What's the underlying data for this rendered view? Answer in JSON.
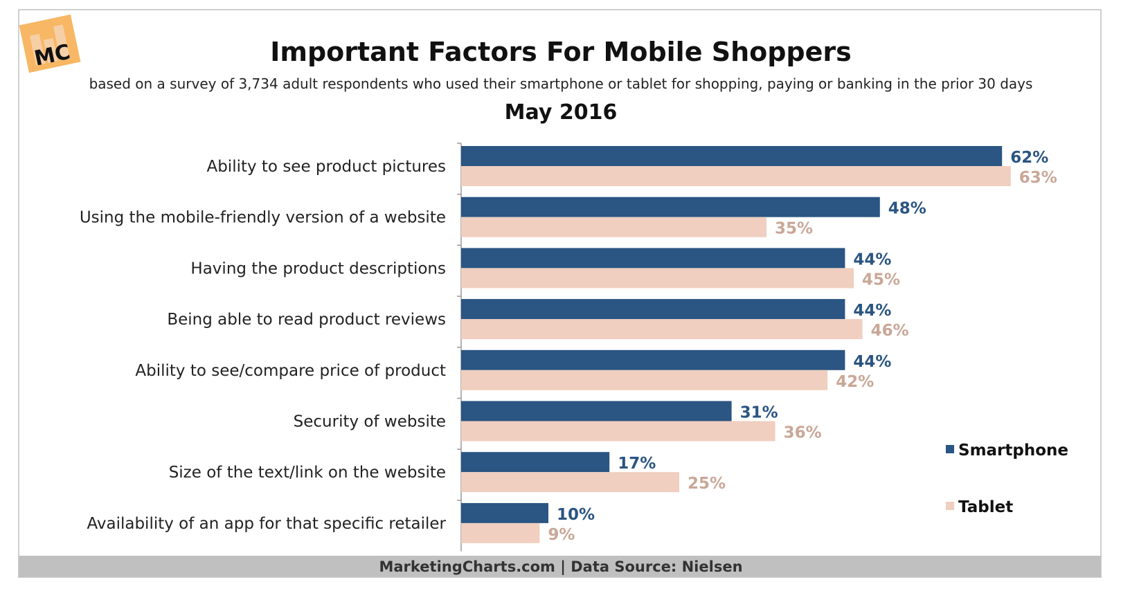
{
  "logo": {
    "text": "MC"
  },
  "footer": "MarketingCharts.com | Data Source: Nielsen",
  "colors": {
    "smartphone": "#2b5582",
    "tablet": "#f0cfc0",
    "tablet_label": "#c9a797",
    "footer_bg": "#c0c0c0"
  },
  "chart_data": {
    "type": "bar",
    "orientation": "horizontal",
    "title": "Important Factors For Mobile Shoppers",
    "subtitle": "based on a survey of 3,734 adult respondents who used their smartphone or tablet for shopping, paying or banking in the prior 30 days",
    "date": "May 2016",
    "categories": [
      "Ability to see product pictures",
      "Using the mobile-friendly version of a website",
      "Having the product descriptions",
      "Being able to read product reviews",
      "Ability to see/compare price of product",
      "Security of website",
      "Size of the text/link on the website",
      "Availability of an app for that specific retailer"
    ],
    "series": [
      {
        "name": "Smartphone",
        "values": [
          62,
          48,
          44,
          44,
          44,
          31,
          17,
          10
        ]
      },
      {
        "name": "Tablet",
        "values": [
          63,
          35,
          45,
          46,
          42,
          36,
          25,
          9
        ]
      }
    ],
    "value_suffix": "%",
    "legend_position": "right",
    "grid": false
  }
}
